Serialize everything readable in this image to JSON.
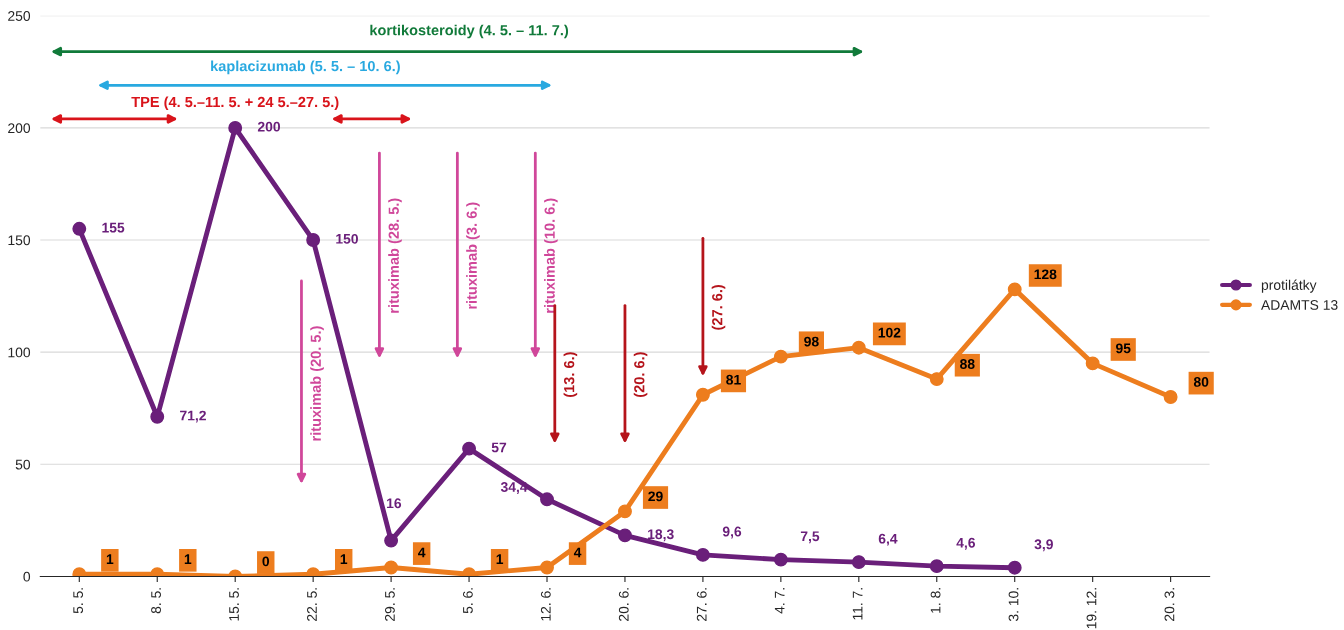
{
  "chart_data": {
    "type": "line",
    "categories": [
      "5. 5.",
      "8. 5.",
      "15. 5.",
      "22. 5.",
      "29. 5.",
      "5. 6.",
      "12. 6.",
      "20. 6.",
      "27. 6.",
      "4. 7.",
      "11. 7.",
      "1. 8.",
      "3. 10.",
      "19. 12.",
      "20. 3."
    ],
    "series": [
      {
        "name": "protilátky",
        "color": "#6a1f7a",
        "values": [
          155,
          71.2,
          200,
          150,
          16,
          57,
          34.4,
          18.3,
          9.6,
          7.5,
          6.4,
          4.6,
          3.9,
          null,
          null
        ],
        "value_labels": [
          "155",
          "71,2",
          "200",
          "150",
          "16",
          "57",
          "34,4",
          "18,3",
          "9,6",
          "7,5",
          "6,4",
          "4,6",
          "3,9",
          null,
          null
        ]
      },
      {
        "name": "ADAMTS 13",
        "color": "#ed7d1e",
        "values": [
          1,
          1,
          0,
          1,
          4,
          1,
          4,
          29,
          81,
          98,
          102,
          88,
          128,
          95,
          80
        ],
        "value_labels": [
          "1",
          "1",
          "0",
          "1",
          "4",
          "1",
          "4",
          "29",
          "81",
          "98",
          "102",
          "88",
          "128",
          "95",
          "80"
        ]
      }
    ],
    "ylim": [
      0,
      250
    ],
    "yticks": [
      0,
      50,
      100,
      150,
      200,
      250
    ],
    "grid": "y",
    "legend": "right",
    "marker": "circle",
    "line_style": "solid",
    "annotations": [
      "kortikosteroidy (4. 5. – 11. 7.)",
      "kaplacizumab (5. 5. – 10. 6.)",
      "TPE (4. 5.–11. 5. + 24 5.–27. 5.)",
      "rituximab (20. 5.)",
      "rituximab (28. 5.)",
      "rituximab (3. 6.)",
      "rituximab (10. 6.)",
      "(13. 6.)",
      "(20. 6.)",
      "(27. 6.)"
    ]
  }
}
